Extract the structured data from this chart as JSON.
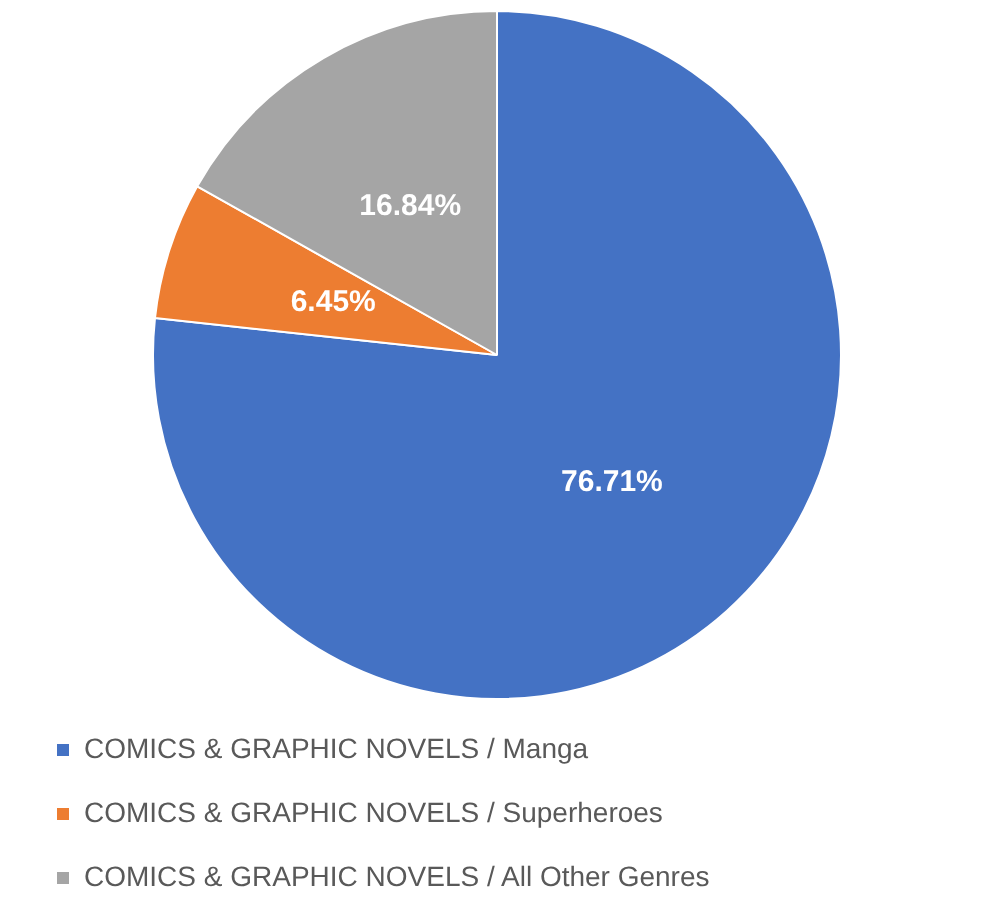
{
  "chart_data": {
    "type": "pie",
    "categories": [
      "COMICS & GRAPHIC NOVELS / Manga",
      "COMICS & GRAPHIC NOVELS / Superheroes",
      "COMICS & GRAPHIC NOVELS / All Other Genres"
    ],
    "values": [
      76.71,
      6.45,
      16.84
    ],
    "colors": [
      "#4472c4",
      "#ed7d31",
      "#a5a5a5"
    ],
    "value_labels": [
      "76.71%",
      "6.45%",
      "16.84%"
    ],
    "legend": "bottom"
  }
}
